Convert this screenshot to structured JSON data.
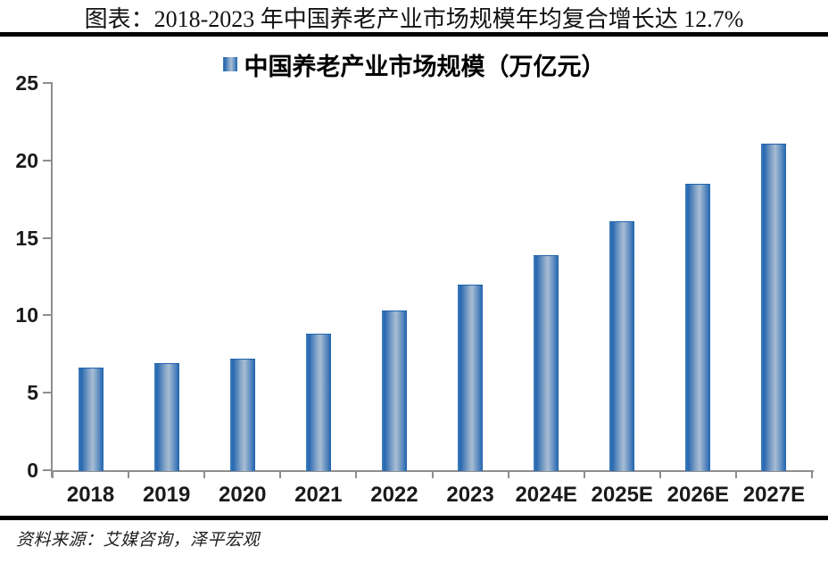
{
  "header": {
    "title": "图表：2018-2023 年中国养老产业市场规模年均复合增长达 12.7%"
  },
  "chart_data": {
    "type": "bar",
    "title": "图表：2018-2023 年中国养老产业市场规模年均复合增长达 12.7%",
    "legend": "中国养老产业市场规模（万亿元）",
    "legend_position": "top-center",
    "categories": [
      "2018",
      "2019",
      "2020",
      "2021",
      "2022",
      "2023",
      "2024E",
      "2025E",
      "2026E",
      "2027E"
    ],
    "values": [
      6.6,
      6.9,
      7.2,
      8.8,
      10.3,
      12.0,
      13.9,
      16.1,
      18.5,
      21.1
    ],
    "unit": "万亿元",
    "xlabel": "",
    "ylabel": "",
    "ylim": [
      0,
      25
    ],
    "yticks": [
      0,
      5,
      10,
      15,
      20,
      25
    ],
    "grid": false,
    "colors": {
      "axis": "#8e8e8e",
      "bar_edge": "#1f63ae",
      "bar_mid": "#a8bdd3",
      "gradient_stops": [
        {
          "color": "#4080be",
          "pos": 0
        },
        {
          "color": "#2667b0",
          "pos": 11
        },
        {
          "color": "#7fa0c6",
          "pos": 40
        },
        {
          "color": "#a8bdd3",
          "pos": 57
        },
        {
          "color": "#6e97c5",
          "pos": 76
        },
        {
          "color": "#1f63ae",
          "pos": 100
        }
      ]
    }
  },
  "footer": {
    "source": "资料来源：艾媒咨询，泽平宏观"
  }
}
